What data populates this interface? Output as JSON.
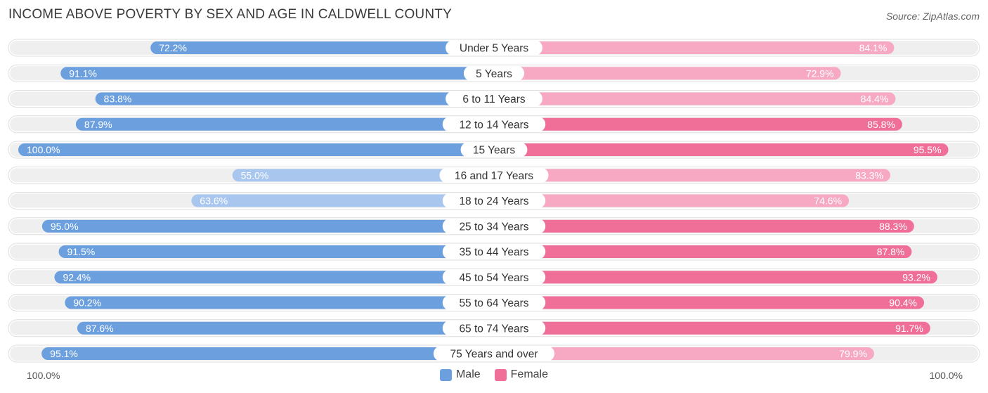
{
  "header": {
    "title": "INCOME ABOVE POVERTY BY SEX AND AGE IN CALDWELL COUNTY",
    "source": "Source: ZipAtlas.com"
  },
  "axis": {
    "left_label": "100.0%",
    "right_label": "100.0%"
  },
  "legend": {
    "male_label": "Male",
    "female_label": "Female"
  },
  "colors": {
    "male_strong": "#6b9fde",
    "male_light": "#a9c7ee",
    "female_strong": "#f06f99",
    "female_light": "#f7a9c3",
    "track": "#efefef"
  },
  "chart_data": {
    "type": "bar",
    "orientation": "horizontal-diverging",
    "title": "INCOME ABOVE POVERTY BY SEX AND AGE IN CALDWELL COUNTY",
    "xlim": [
      0,
      100
    ],
    "categories": [
      "Under 5 Years",
      "5 Years",
      "6 to 11 Years",
      "12 to 14 Years",
      "15 Years",
      "16 and 17 Years",
      "18 to 24 Years",
      "25 to 34 Years",
      "35 to 44 Years",
      "45 to 54 Years",
      "55 to 64 Years",
      "65 to 74 Years",
      "75 Years and over"
    ],
    "series": [
      {
        "name": "Male",
        "values": [
          72.2,
          91.1,
          83.8,
          87.9,
          100.0,
          55.0,
          63.6,
          95.0,
          91.5,
          92.4,
          90.2,
          87.6,
          95.1
        ],
        "labels": [
          "72.2%",
          "91.1%",
          "83.8%",
          "87.9%",
          "100.0%",
          "55.0%",
          "63.6%",
          "95.0%",
          "91.5%",
          "92.4%",
          "90.2%",
          "87.6%",
          "95.1%"
        ]
      },
      {
        "name": "Female",
        "values": [
          84.1,
          72.9,
          84.4,
          85.8,
          95.5,
          83.3,
          74.6,
          88.3,
          87.8,
          93.2,
          90.4,
          91.7,
          79.9
        ],
        "labels": [
          "84.1%",
          "72.9%",
          "84.4%",
          "85.8%",
          "95.5%",
          "83.3%",
          "74.6%",
          "88.3%",
          "87.8%",
          "93.2%",
          "90.4%",
          "91.7%",
          "79.9%"
        ]
      }
    ],
    "legend_position": "bottom-center"
  }
}
